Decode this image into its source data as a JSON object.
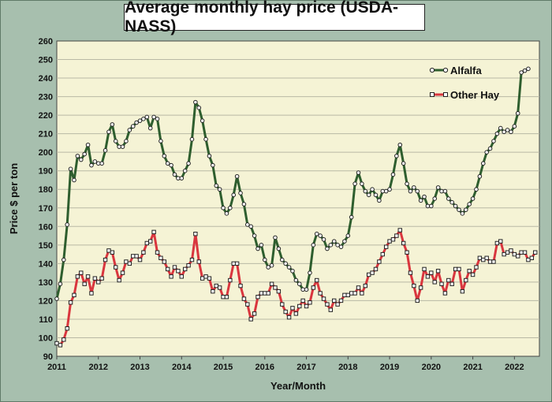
{
  "chart_data": {
    "type": "line",
    "title": "Average monthly hay price (USDA-NASS)",
    "xlabel": "Year/Month",
    "ylabel": "Price $ per ton",
    "ylim": [
      90,
      260
    ],
    "xlim": [
      2011,
      2022.6
    ],
    "x_ticks": [
      "2011",
      "2012",
      "2013",
      "2014",
      "2015",
      "2016",
      "2017",
      "2018",
      "2019",
      "2020",
      "2021",
      "2022"
    ],
    "y_ticks": [
      "90",
      "100",
      "110",
      "120",
      "130",
      "140",
      "150",
      "160",
      "170",
      "180",
      "190",
      "200",
      "210",
      "220",
      "230",
      "240",
      "250",
      "260"
    ],
    "grid": "horizontal",
    "legend": "top-right",
    "series_start": "2011-01",
    "series": [
      {
        "name": "Alfalfa",
        "color": "#2e5e2e",
        "marker": "circle",
        "values": [
          121,
          129,
          142,
          161,
          191,
          185,
          198,
          196,
          199,
          204,
          193,
          195,
          194,
          194,
          201,
          211,
          215,
          206,
          203,
          203,
          206,
          212,
          214,
          216,
          217,
          218,
          219,
          213,
          219,
          218,
          206,
          198,
          194,
          193,
          188,
          186,
          186,
          190,
          194,
          207,
          227,
          224,
          217,
          207,
          198,
          193,
          182,
          180,
          170,
          167,
          170,
          177,
          187,
          178,
          172,
          161,
          160,
          155,
          148,
          150,
          142,
          138,
          139,
          154,
          148,
          142,
          140,
          138,
          136,
          131,
          129,
          126,
          126,
          135,
          150,
          156,
          155,
          153,
          148,
          150,
          152,
          150,
          149,
          152,
          155,
          165,
          183,
          189,
          183,
          179,
          177,
          180,
          177,
          174,
          179,
          179,
          180,
          188,
          198,
          204,
          194,
          183,
          179,
          181,
          179,
          174,
          176,
          171,
          171,
          175,
          181,
          179,
          179,
          175,
          173,
          171,
          169,
          167,
          169,
          172,
          175,
          180,
          187,
          194,
          200,
          202,
          206,
          210,
          213,
          211,
          212,
          211,
          214,
          221,
          243,
          244,
          245
        ]
      },
      {
        "name": "Other Hay",
        "color": "#d9363e",
        "marker": "square",
        "values": [
          97,
          96,
          99,
          105,
          119,
          123,
          133,
          135,
          129,
          133,
          124,
          132,
          130,
          132,
          142,
          147,
          146,
          138,
          131,
          135,
          141,
          140,
          144,
          144,
          142,
          146,
          151,
          152,
          157,
          146,
          143,
          141,
          137,
          133,
          138,
          136,
          133,
          137,
          139,
          142,
          156,
          141,
          132,
          133,
          132,
          125,
          128,
          127,
          122,
          122,
          131,
          140,
          140,
          128,
          121,
          118,
          110,
          113,
          122,
          124,
          124,
          124,
          129,
          127,
          125,
          118,
          114,
          111,
          116,
          113,
          117,
          120,
          117,
          119,
          127,
          131,
          124,
          121,
          118,
          115,
          120,
          118,
          120,
          123,
          123,
          124,
          124,
          127,
          124,
          128,
          134,
          135,
          137,
          141,
          145,
          149,
          152,
          153,
          155,
          158,
          151,
          146,
          135,
          128,
          120,
          127,
          137,
          133,
          135,
          130,
          136,
          129,
          124,
          131,
          129,
          137,
          137,
          125,
          131,
          136,
          134,
          138,
          143,
          142,
          143,
          141,
          141,
          151,
          152,
          145,
          146,
          147,
          145,
          144,
          146,
          146,
          142,
          143,
          146
        ]
      }
    ]
  }
}
